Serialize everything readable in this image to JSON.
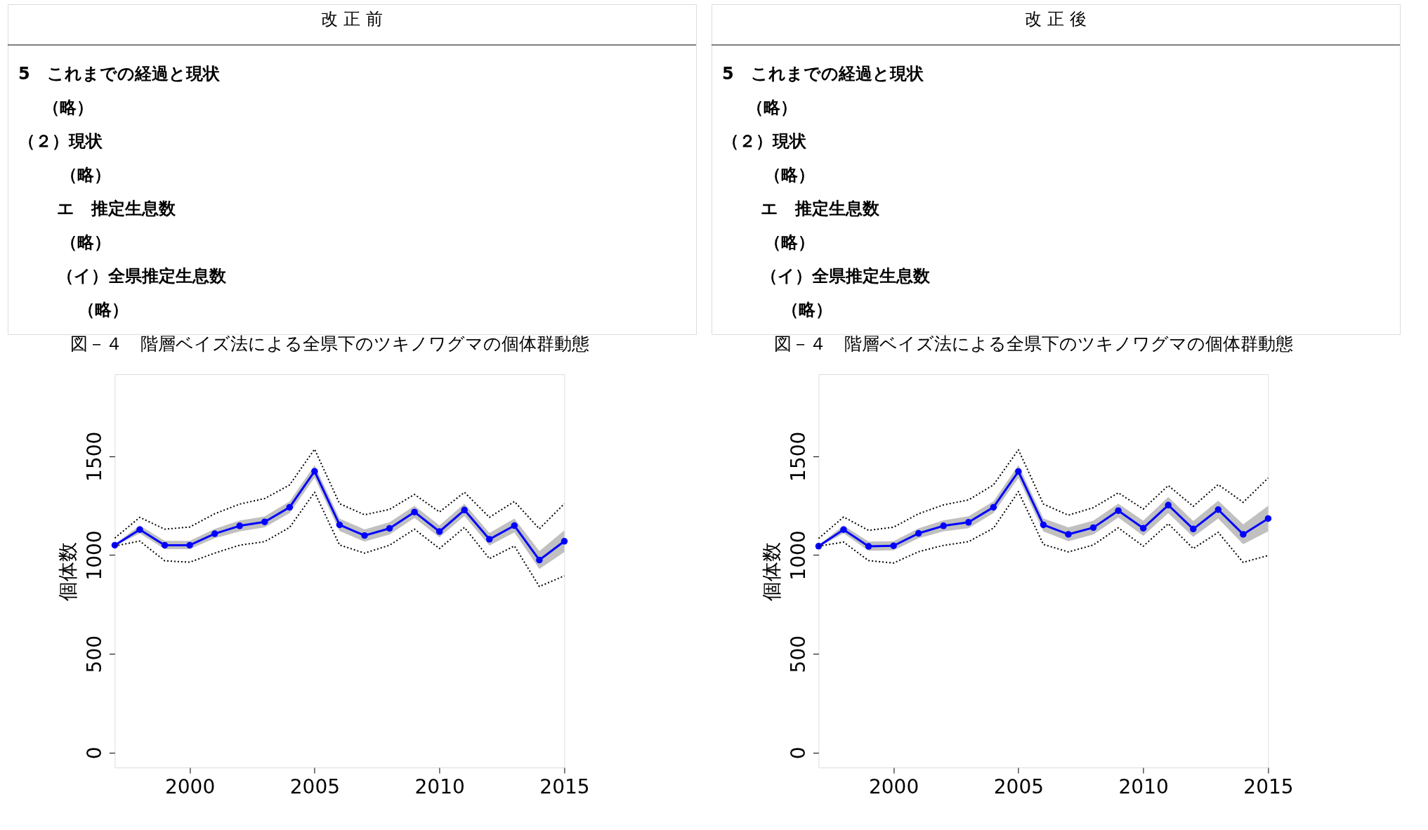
{
  "chart_data": [
    {
      "type": "line",
      "title": "図－４　階層ベイズ法による全県下のツキノワグマの個体群動態",
      "ylabel": "個体数",
      "annotations": [
        "改 正 前",
        "5　これまでの経過と現状",
        "（略）",
        "（２）現状",
        "（略）",
        "エ　推定生息数",
        "（略）",
        "（イ）全県推定生息数",
        "（略）"
      ],
      "x": [
        1997,
        1998,
        1999,
        2000,
        2001,
        2002,
        2003,
        2004,
        2005,
        2006,
        2007,
        2008,
        2009,
        2010,
        2011,
        2012,
        2013,
        2014,
        2015
      ],
      "xlim": [
        1997,
        2015
      ],
      "xticks": [
        2000,
        2005,
        2010,
        2015
      ],
      "ylim": [
        -75,
        1915
      ],
      "yticks": [
        0,
        500,
        1000,
        1500
      ],
      "grid": false,
      "marker": "circle",
      "series": [
        {
          "color": "#0000ff",
          "values": [
            1050,
            1129,
            1050,
            1050,
            1108,
            1148,
            1168,
            1242,
            1424,
            1153,
            1099,
            1135,
            1218,
            1119,
            1228,
            1080,
            1149,
            975,
            1070
          ],
          "lower": [
            1045,
            1110,
            1030,
            1030,
            1085,
            1120,
            1140,
            1212,
            1392,
            1122,
            1068,
            1104,
            1188,
            1090,
            1198,
            1048,
            1115,
            930,
            1015
          ],
          "upper": [
            1055,
            1150,
            1072,
            1072,
            1132,
            1175,
            1195,
            1272,
            1455,
            1185,
            1130,
            1166,
            1250,
            1150,
            1260,
            1112,
            1185,
            1020,
            1125
          ]
        },
        {
          "color": "#000000",
          "type": "line",
          "line_style": "dotted",
          "marker": "none",
          "values": [
            1086,
            1191,
            1131,
            1142,
            1209,
            1258,
            1286,
            1355,
            1536,
            1260,
            1204,
            1231,
            1307,
            1218,
            1318,
            1191,
            1271,
            1133,
            1260
          ]
        },
        {
          "color": "#000000",
          "type": "line",
          "line_style": "dotted",
          "marker": "none",
          "values": [
            1046,
            1071,
            971,
            964,
            1010,
            1050,
            1068,
            1140,
            1318,
            1051,
            1010,
            1050,
            1131,
            1033,
            1140,
            982,
            1046,
            841,
            895
          ]
        }
      ]
    },
    {
      "type": "line",
      "title": "図－４　階層ベイズ法による全県下のツキノワグマの個体群動態",
      "ylabel": "個体数",
      "annotations": [
        "改 正 後",
        "5　これまでの経過と現状",
        "（略）",
        "（２）現状",
        "（略）",
        "エ　推定生息数",
        "（略）",
        "（イ）全県推定生息数",
        "（略）"
      ],
      "x": [
        1997,
        1998,
        1999,
        2000,
        2001,
        2002,
        2003,
        2004,
        2005,
        2006,
        2007,
        2008,
        2009,
        2010,
        2011,
        2012,
        2013,
        2014,
        2015
      ],
      "xlim": [
        1997,
        2015
      ],
      "xticks": [
        2000,
        2005,
        2010,
        2015
      ],
      "ylim": [
        -75,
        1915
      ],
      "yticks": [
        0,
        500,
        1000,
        1500
      ],
      "grid": false,
      "marker": "circle",
      "series": [
        {
          "color": "#0000ff",
          "values": [
            1045,
            1129,
            1044,
            1047,
            1110,
            1148,
            1166,
            1242,
            1423,
            1153,
            1105,
            1139,
            1225,
            1136,
            1253,
            1132,
            1230,
            1105,
            1185
          ],
          "lower": [
            1040,
            1110,
            1022,
            1024,
            1085,
            1120,
            1136,
            1212,
            1390,
            1120,
            1070,
            1104,
            1190,
            1098,
            1212,
            1092,
            1185,
            1055,
            1120
          ],
          "upper": [
            1050,
            1150,
            1068,
            1070,
            1135,
            1176,
            1196,
            1272,
            1456,
            1186,
            1140,
            1174,
            1260,
            1174,
            1294,
            1172,
            1275,
            1155,
            1250
          ]
        },
        {
          "color": "#000000",
          "type": "line",
          "line_style": "dotted",
          "marker": "none",
          "values": [
            1084,
            1193,
            1125,
            1141,
            1209,
            1254,
            1279,
            1355,
            1533,
            1258,
            1202,
            1240,
            1315,
            1233,
            1352,
            1247,
            1357,
            1267,
            1390
          ]
        },
        {
          "color": "#000000",
          "type": "line",
          "line_style": "dotted",
          "marker": "none",
          "values": [
            1045,
            1066,
            972,
            960,
            1017,
            1049,
            1068,
            1136,
            1321,
            1054,
            1016,
            1051,
            1138,
            1045,
            1159,
            1033,
            1115,
            963,
            998
          ]
        }
      ]
    }
  ]
}
